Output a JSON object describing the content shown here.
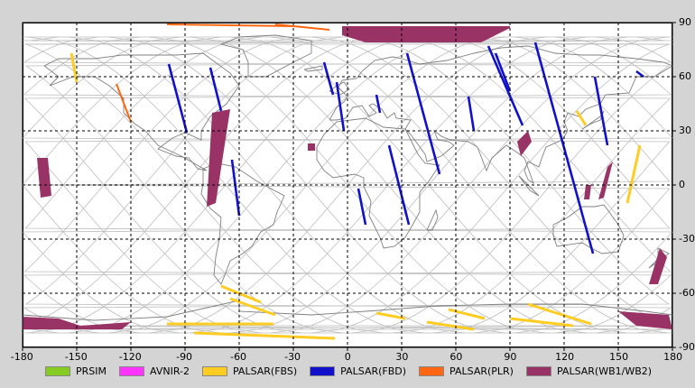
{
  "map": {
    "x_ticks": [
      "-180",
      "-150",
      "-120",
      "-90",
      "-60",
      "-30",
      "0",
      "30",
      "60",
      "90",
      "120",
      "150",
      "180"
    ],
    "y_ticks": [
      "90",
      "60",
      "30",
      "0",
      "-30",
      "-60",
      "-90"
    ],
    "x_range": [
      -180,
      180
    ],
    "y_range": [
      -90,
      90
    ],
    "grid_step_deg": 30,
    "grid_style": "dashed black",
    "projection": "equirectangular",
    "land_outline_color": "#808080",
    "orbit_track_color": "#bdbdbd"
  },
  "legend": [
    {
      "label": "PRSIM",
      "color": "#88cc22"
    },
    {
      "label": "AVNIR-2",
      "color": "#ff33ff"
    },
    {
      "label": "PALSAR(FBS)",
      "color": "#ffcc22"
    },
    {
      "label": "PALSAR(FBD)",
      "color": "#1111cc"
    },
    {
      "label": "PALSAR(PLR)",
      "color": "#ff6611"
    },
    {
      "label": "PALSAR(WB1/WB2)",
      "color": "#993366"
    }
  ],
  "coverage": {
    "fbd": [
      [
        [
          -99,
          67
        ],
        [
          -89,
          29
        ]
      ],
      [
        [
          -76,
          65
        ],
        [
          -70,
          41
        ]
      ],
      [
        [
          -64,
          14
        ],
        [
          -60,
          -17
        ]
      ],
      [
        [
          -13,
          68
        ],
        [
          -8,
          50
        ]
      ],
      [
        [
          -6,
          57
        ],
        [
          -2,
          30
        ]
      ],
      [
        [
          16,
          50
        ],
        [
          18,
          40
        ]
      ],
      [
        [
          33,
          73
        ],
        [
          51,
          6
        ]
      ],
      [
        [
          23,
          22
        ],
        [
          34,
          -22
        ]
      ],
      [
        [
          6,
          -2
        ],
        [
          10,
          -22
        ]
      ],
      [
        [
          67,
          49
        ],
        [
          70,
          30
        ]
      ],
      [
        [
          78,
          77
        ],
        [
          97,
          33
        ]
      ],
      [
        [
          82,
          73
        ],
        [
          90,
          52
        ]
      ],
      [
        [
          104,
          79
        ],
        [
          136,
          -38
        ]
      ],
      [
        [
          137,
          60
        ],
        [
          144,
          22
        ]
      ],
      [
        [
          160,
          63
        ],
        [
          164,
          60
        ]
      ]
    ],
    "fbs": [
      [
        [
          -153,
          73
        ],
        [
          -150,
          57
        ]
      ],
      [
        [
          -100,
          -77
        ],
        [
          -41,
          -77
        ]
      ],
      [
        [
          -85,
          -82
        ],
        [
          -7,
          -85
        ]
      ],
      [
        [
          -70,
          -56
        ],
        [
          -48,
          -65
        ]
      ],
      [
        [
          -65,
          -63
        ],
        [
          -40,
          -72
        ]
      ],
      [
        [
          16,
          -71
        ],
        [
          32,
          -74
        ]
      ],
      [
        [
          44,
          -76
        ],
        [
          70,
          -80
        ]
      ],
      [
        [
          56,
          -69
        ],
        [
          76,
          -74
        ]
      ],
      [
        [
          90,
          -74
        ],
        [
          125,
          -78
        ]
      ],
      [
        [
          100,
          -66
        ],
        [
          135,
          -77
        ]
      ],
      [
        [
          155,
          -10
        ],
        [
          162,
          22
        ]
      ],
      [
        [
          127,
          41
        ],
        [
          132,
          33
        ]
      ]
    ],
    "plr": [
      [
        [
          -100,
          89
        ],
        [
          -30,
          88
        ]
      ],
      [
        [
          -40,
          89
        ],
        [
          -10,
          86
        ]
      ],
      [
        [
          -128,
          56
        ],
        [
          -120,
          35
        ]
      ],
      [
        [
          -140,
          -78
        ],
        [
          -127,
          -79
        ]
      ]
    ],
    "wb": [
      [
        [
          -75,
          40
        ],
        [
          -65,
          42
        ],
        [
          -73,
          -10
        ],
        [
          -78,
          -12
        ]
      ],
      [
        [
          -172,
          15
        ],
        [
          -166,
          15
        ],
        [
          -164,
          -6
        ],
        [
          -170,
          -7
        ]
      ],
      [
        [
          -22,
          23
        ],
        [
          -18,
          23
        ],
        [
          -18,
          19
        ],
        [
          -22,
          19
        ]
      ],
      [
        [
          -3,
          88
        ],
        [
          90,
          88
        ],
        [
          90,
          87
        ],
        [
          74,
          79
        ],
        [
          10,
          79
        ],
        [
          -3,
          83
        ]
      ],
      [
        [
          96,
          16
        ],
        [
          102,
          24
        ],
        [
          100,
          30
        ],
        [
          94,
          24
        ]
      ],
      [
        [
          144,
          10
        ],
        [
          147,
          13
        ],
        [
          142,
          -7
        ],
        [
          139,
          -8
        ]
      ],
      [
        [
          132,
          0
        ],
        [
          135,
          0
        ],
        [
          134,
          -8
        ],
        [
          131,
          -8
        ]
      ],
      [
        [
          173,
          -35
        ],
        [
          177,
          -40
        ],
        [
          172,
          -55
        ],
        [
          167,
          -55
        ]
      ],
      [
        [
          -180,
          -73
        ],
        [
          -160,
          -74
        ],
        [
          -148,
          -78
        ],
        [
          -120,
          -76
        ],
        [
          -125,
          -80
        ],
        [
          -180,
          -80
        ]
      ],
      [
        [
          150,
          -70
        ],
        [
          178,
          -72
        ],
        [
          180,
          -80
        ],
        [
          160,
          -78
        ]
      ]
    ]
  }
}
